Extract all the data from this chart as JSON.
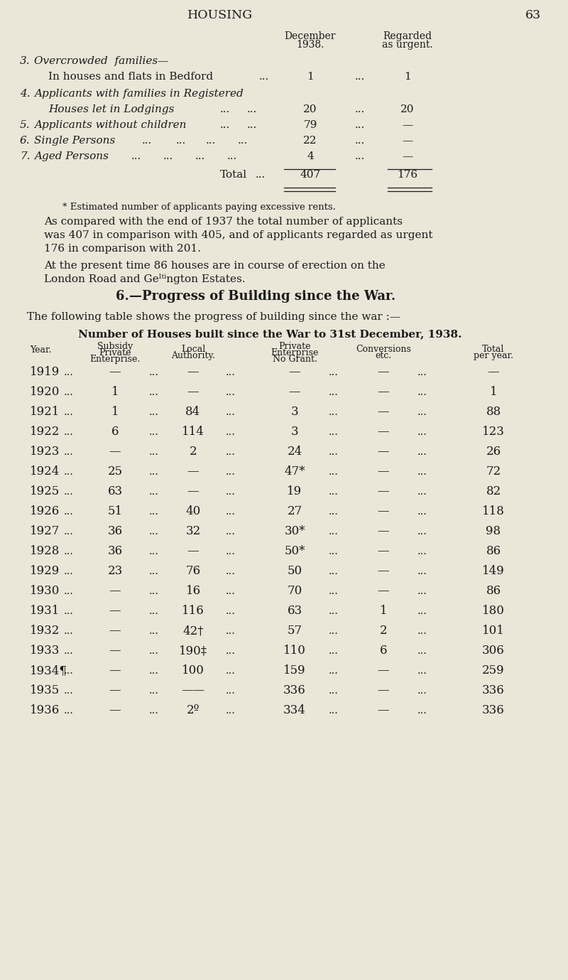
{
  "bg_color": "#eae6d8",
  "text_color": "#1a1a1a",
  "page_title": "HOUSING",
  "page_number": "63",
  "footnote": "* Estimated number of applicants paying excessive rents.",
  "para1_lines": [
    "As compared with the end of 1937 the total number of applicants",
    "was 407 in comparison with 405, and of applicants regarded as urgent",
    "176 in comparison with 201."
  ],
  "para2_lines": [
    "At the present time 86 houses are in course of erection on the",
    "London Road and Ge’ᵗⁱngton Estates."
  ],
  "section_title": "6.—Progress of Building since the War.",
  "intro_text": "The following table shows the progress of building since the war :—",
  "table_title": "Number of Houses built since the War to 31st December, 1938.",
  "table_rows": [
    [
      "1919",
      "—",
      "—",
      "—",
      "—",
      "—"
    ],
    [
      "1920",
      "1",
      "—",
      "—",
      "—",
      "1"
    ],
    [
      "1921",
      "1",
      "84",
      "3",
      "—",
      "88"
    ],
    [
      "1922",
      "6",
      "114",
      "3",
      "—",
      "123"
    ],
    [
      "1923",
      "—",
      "2",
      "24",
      "—",
      "26"
    ],
    [
      "1924",
      "25",
      "—",
      "47*",
      "—",
      "72"
    ],
    [
      "1925",
      "63",
      "—",
      "19",
      "—",
      "82"
    ],
    [
      "1926",
      "51",
      "40",
      "27",
      "—",
      "118"
    ],
    [
      "1927",
      "36",
      "32",
      "30*",
      "—",
      "98"
    ],
    [
      "1928",
      "36",
      "—",
      "50*",
      "—",
      "86"
    ],
    [
      "1929",
      "23",
      "76",
      "50",
      "—",
      "149"
    ],
    [
      "1930",
      "—",
      "16",
      "70",
      "—",
      "86"
    ],
    [
      "1931",
      "—",
      "116",
      "63",
      "1",
      "180"
    ],
    [
      "1932",
      "—",
      "42†",
      "57",
      "2",
      "101"
    ],
    [
      "1933",
      "—",
      "190‡",
      "110",
      "6",
      "306"
    ],
    [
      "1934¶",
      "—",
      "100",
      "159",
      "—",
      "259"
    ],
    [
      "1935",
      "—",
      "——",
      "336",
      "—",
      "336"
    ],
    [
      "1936",
      "—",
      "2º",
      "334",
      "—",
      "336"
    ]
  ]
}
